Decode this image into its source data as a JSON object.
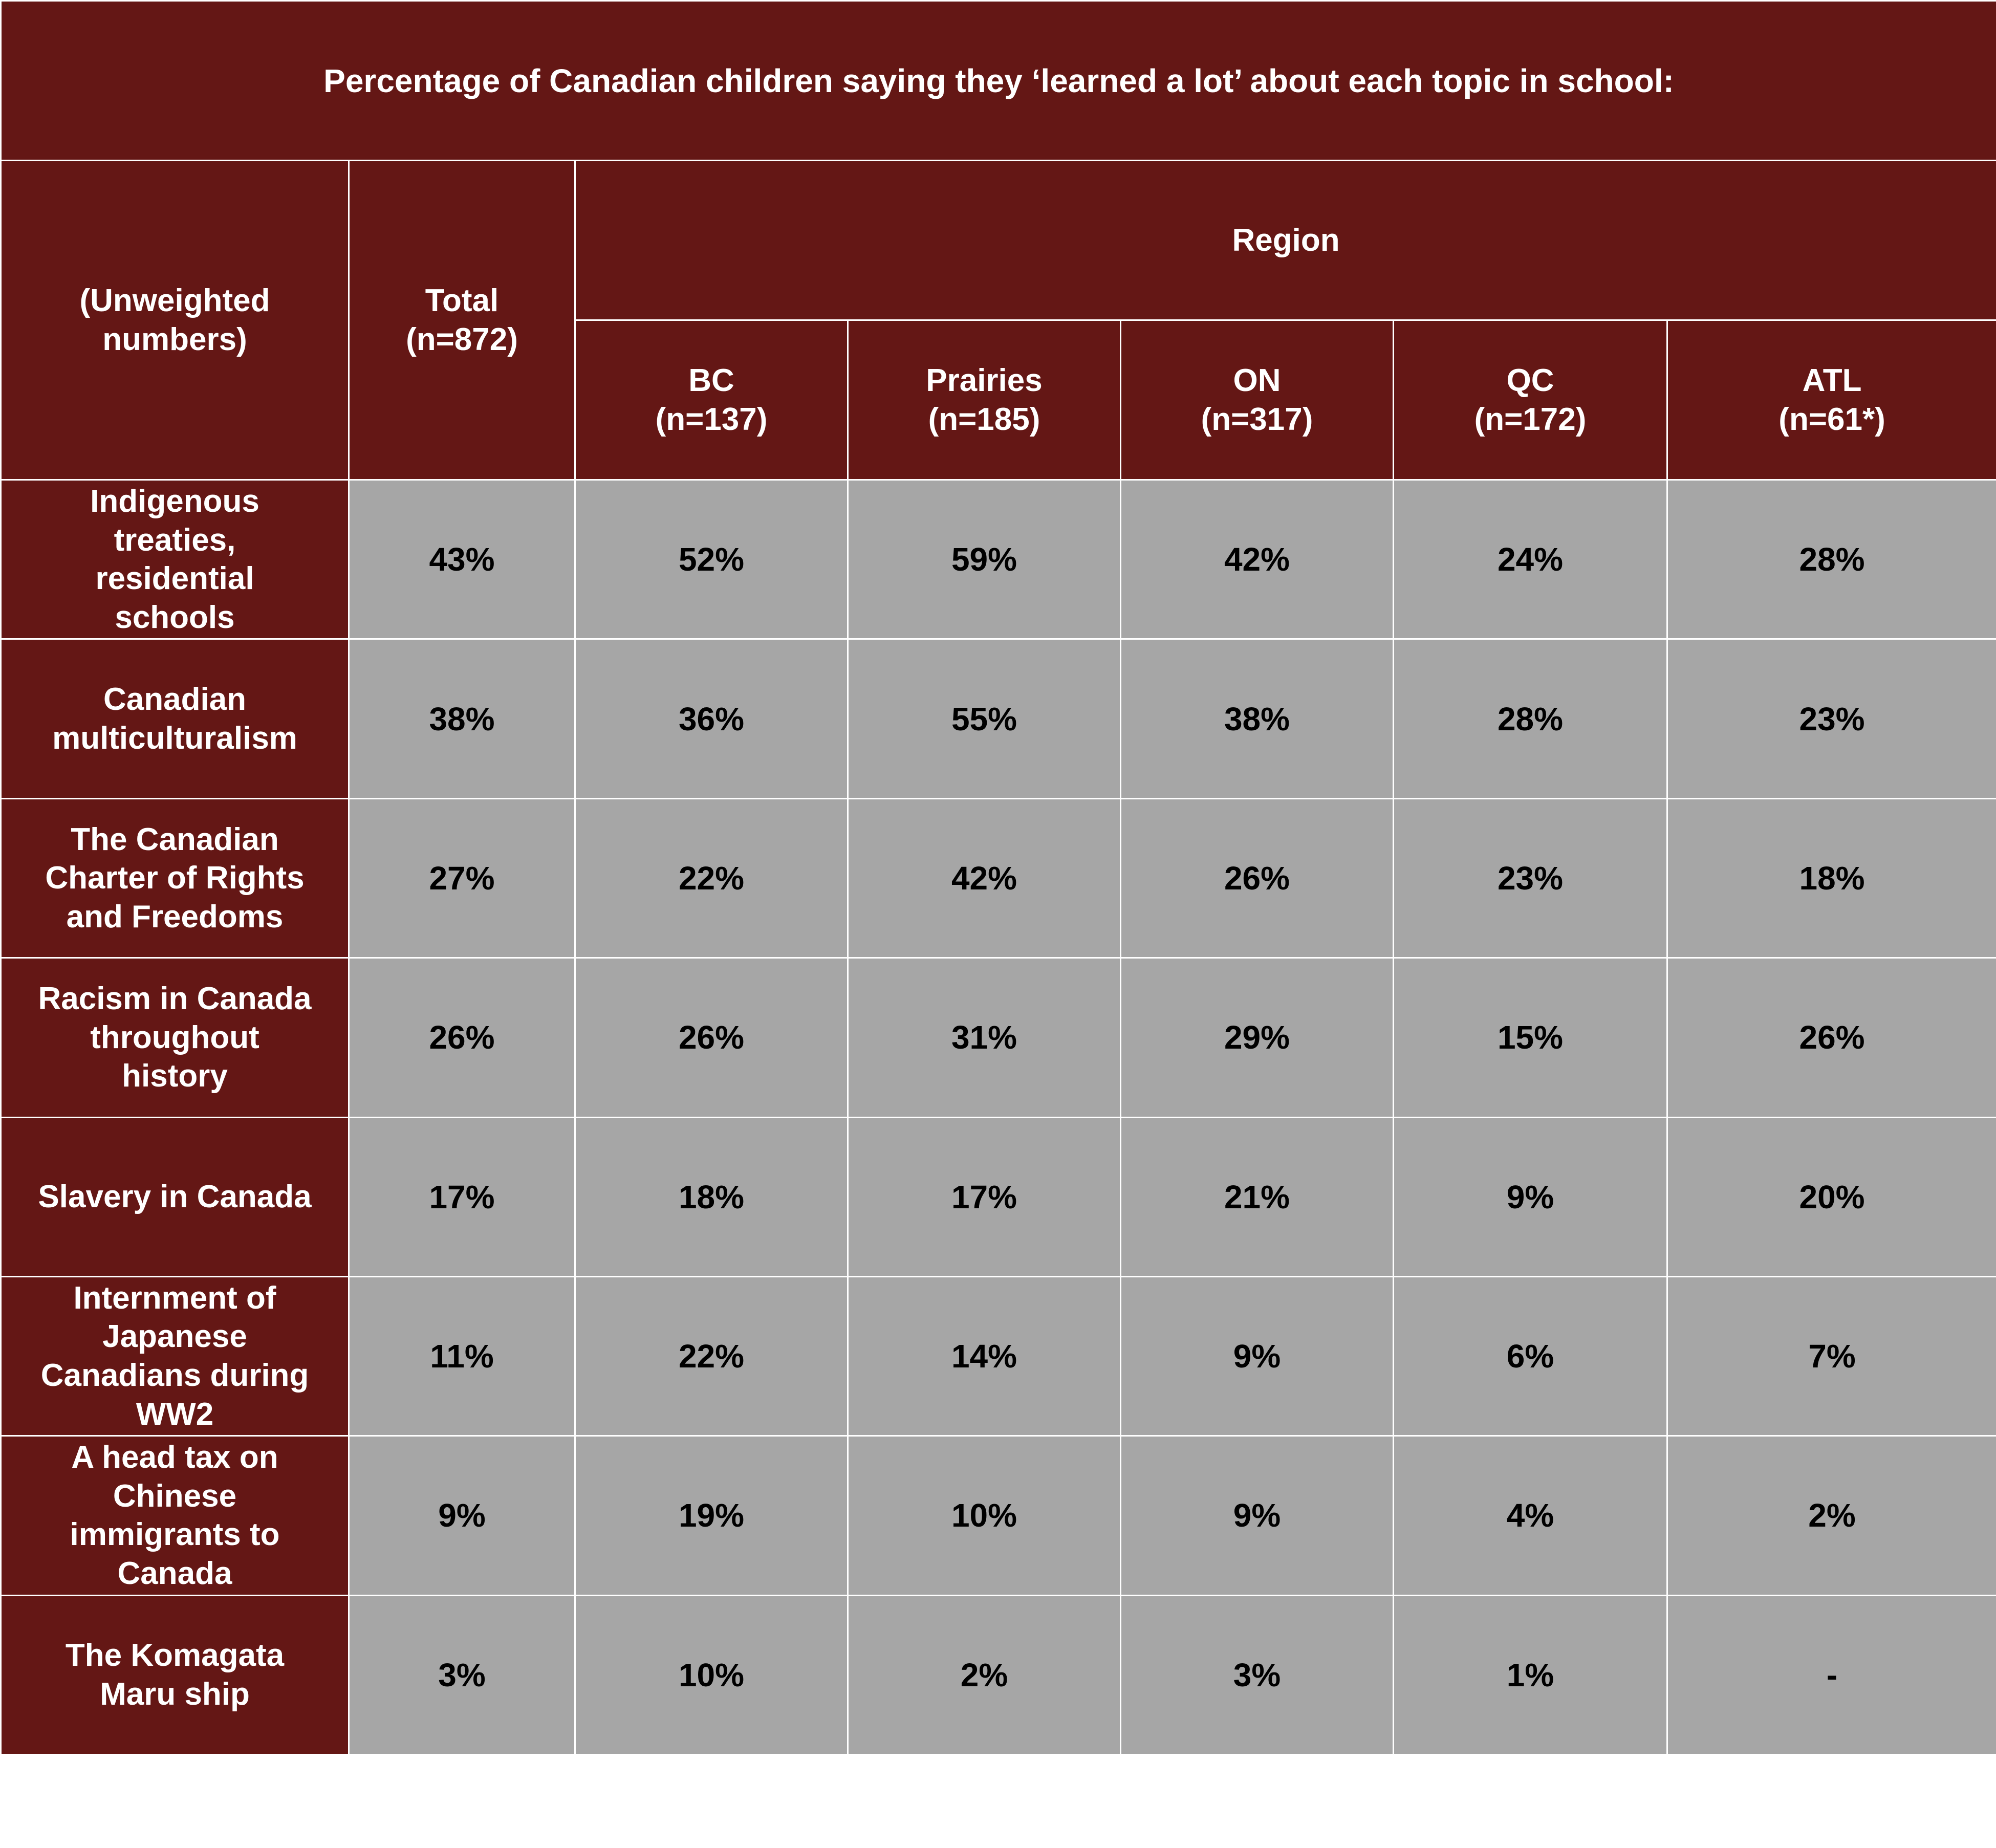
{
  "chart_data": {
    "type": "table",
    "title": "Percentage of Canadian children saying they ‘learned a lot’ about each topic in school:",
    "row_header": [
      "(Unweighted",
      "numbers)"
    ],
    "total_header": [
      "Total",
      "(n=872)"
    ],
    "group_header": "Region",
    "columns": [
      {
        "name": "BC",
        "n": "(n=137)"
      },
      {
        "name": "Prairies",
        "n": "(n=185)"
      },
      {
        "name": "ON",
        "n": "(n=317)"
      },
      {
        "name": "QC",
        "n": "(n=172)"
      },
      {
        "name": "ATL",
        "n": "(n=61*)"
      }
    ],
    "rows": [
      {
        "label": [
          "Indigenous",
          "treaties,",
          "residential",
          "schools"
        ],
        "values": [
          "43%",
          "52%",
          "59%",
          "42%",
          "24%",
          "28%"
        ]
      },
      {
        "label": [
          "Canadian",
          "multiculturalism"
        ],
        "values": [
          "38%",
          "36%",
          "55%",
          "38%",
          "28%",
          "23%"
        ]
      },
      {
        "label": [
          "The Canadian",
          "Charter of Rights",
          "and Freedoms"
        ],
        "values": [
          "27%",
          "22%",
          "42%",
          "26%",
          "23%",
          "18%"
        ]
      },
      {
        "label": [
          "Racism in Canada",
          "throughout",
          "history"
        ],
        "values": [
          "26%",
          "26%",
          "31%",
          "29%",
          "15%",
          "26%"
        ]
      },
      {
        "label": [
          "Slavery in Canada"
        ],
        "values": [
          "17%",
          "18%",
          "17%",
          "21%",
          "9%",
          "20%"
        ]
      },
      {
        "label": [
          "Internment of",
          "Japanese",
          "Canadians during",
          "WW2"
        ],
        "values": [
          "11%",
          "22%",
          "14%",
          "9%",
          "6%",
          "7%"
        ]
      },
      {
        "label": [
          "A head tax on",
          "Chinese",
          "immigrants to",
          "Canada"
        ],
        "values": [
          "9%",
          "19%",
          "10%",
          "9%",
          "4%",
          "2%"
        ]
      },
      {
        "label": [
          "The Komagata",
          "Maru ship"
        ],
        "values": [
          "3%",
          "10%",
          "2%",
          "3%",
          "1%",
          "-"
        ]
      }
    ],
    "colors": {
      "header_bg": "#641715",
      "cell_bg": "#a6a6a6",
      "border": "#ffffff"
    }
  }
}
